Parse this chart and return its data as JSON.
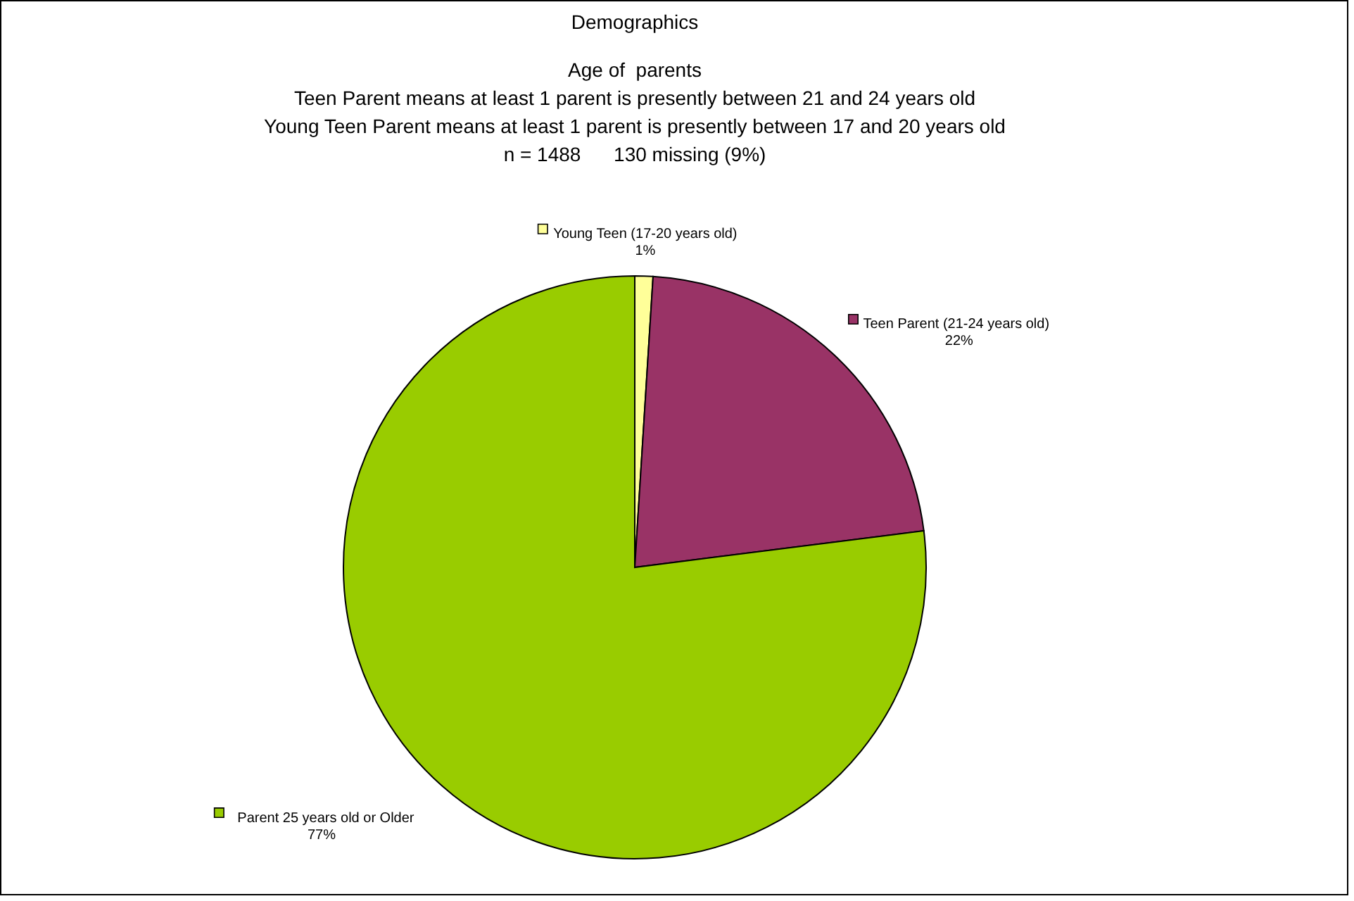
{
  "chart_data": {
    "type": "pie",
    "title": "Demographics",
    "subtitle": "\nAge of  parents\nTeen Parent means at least 1 parent is presently between 21 and 24 years old\nYoung Teen Parent means at least 1 parent is presently between 17 and 20 years old\nn = 1488      130 missing (9%)",
    "categories": [
      "Young Teen (17-20 years old)",
      "Teen Parent (21-24 years old)",
      "Parent 25 years old or Older"
    ],
    "values": [
      1,
      22,
      77
    ],
    "colors": [
      "#ffff99",
      "#993366",
      "#99cc00"
    ],
    "value_labels": [
      "1%",
      "22%",
      "77%"
    ],
    "legend": "top"
  }
}
